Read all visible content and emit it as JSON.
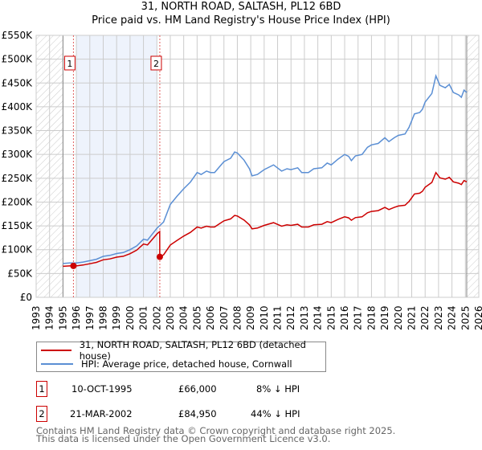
{
  "header": {
    "title": "31, NORTH ROAD, SALTASH, PL12 6BD",
    "subtitle": "Price paid vs. HM Land Registry's House Price Index (HPI)"
  },
  "chart_data": {
    "type": "line",
    "title": "31, NORTH ROAD, SALTASH, PL12 6BD",
    "subtitle": "Price paid vs. HM Land Registry's House Price Index (HPI)",
    "xlim": [
      1993,
      2026
    ],
    "ylim": [
      0,
      550000
    ],
    "x_ticks": [
      "1993",
      "1994",
      "1995",
      "1996",
      "1997",
      "1998",
      "1999",
      "2000",
      "2001",
      "2002",
      "2003",
      "2004",
      "2005",
      "2006",
      "2007",
      "2008",
      "2009",
      "2010",
      "2011",
      "2012",
      "2013",
      "2014",
      "2015",
      "2016",
      "2017",
      "2018",
      "2019",
      "2020",
      "2021",
      "2022",
      "2023",
      "2024",
      "2025",
      "2026"
    ],
    "y_ticks": [
      {
        "v": 0,
        "label": "£0"
      },
      {
        "v": 50000,
        "label": "£50K"
      },
      {
        "v": 100000,
        "label": "£100K"
      },
      {
        "v": 150000,
        "label": "£150K"
      },
      {
        "v": 200000,
        "label": "£200K"
      },
      {
        "v": 250000,
        "label": "£250K"
      },
      {
        "v": 300000,
        "label": "£300K"
      },
      {
        "v": 350000,
        "label": "£350K"
      },
      {
        "v": 400000,
        "label": "£400K"
      },
      {
        "v": 450000,
        "label": "£450K"
      },
      {
        "v": 500000,
        "label": "£500K"
      },
      {
        "v": 550000,
        "label": "£550K"
      }
    ],
    "grid": true,
    "hatched_ranges": [
      [
        1993,
        1995
      ],
      [
        2025.1,
        2026
      ]
    ],
    "shaded_range": [
      1996,
      2002
    ],
    "series": [
      {
        "name": "HPI: Average price, detached house, Cornwall",
        "color": "#5b8fd4",
        "x": [
          1995,
          1995.5,
          1996,
          1996.5,
          1997,
          1997.5,
          1998,
          1998.5,
          1999,
          1999.5,
          2000,
          2000.5,
          2001,
          2001.3,
          2001.5,
          2002,
          2002.5,
          2003,
          2003.5,
          2004,
          2004.5,
          2005,
          2005.3,
          2005.7,
          2006,
          2006.3,
          2006.7,
          2007,
          2007.5,
          2007.8,
          2008,
          2008.5,
          2008.9,
          2009.1,
          2009.5,
          2010,
          2010.7,
          2011.3,
          2011.7,
          2012,
          2012.5,
          2012.8,
          2013.3,
          2013.7,
          2014.3,
          2014.7,
          2015,
          2015.5,
          2016,
          2016.3,
          2016.5,
          2016.8,
          2017.3,
          2017.7,
          2018,
          2018.5,
          2019,
          2019.3,
          2019.7,
          2020,
          2020.5,
          2020.8,
          2021.2,
          2021.6,
          2021.8,
          2022,
          2022.5,
          2022.8,
          2023.1,
          2023.5,
          2023.8,
          2024.1,
          2024.5,
          2024.7,
          2024.9,
          2025.1
        ],
        "y": [
          71000,
          72000,
          72000,
          74000,
          77000,
          80000,
          86000,
          88000,
          92000,
          94000,
          100000,
          108000,
          122000,
          120000,
          127000,
          145000,
          158000,
          195000,
          212000,
          228000,
          242000,
          262000,
          258000,
          265000,
          262000,
          262000,
          275000,
          285000,
          292000,
          305000,
          303000,
          288000,
          270000,
          255000,
          258000,
          268000,
          278000,
          265000,
          270000,
          268000,
          272000,
          262000,
          262000,
          270000,
          272000,
          282000,
          278000,
          290000,
          300000,
          296000,
          287000,
          297000,
          300000,
          315000,
          320000,
          323000,
          335000,
          327000,
          335000,
          340000,
          343000,
          357000,
          385000,
          388000,
          395000,
          410000,
          428000,
          465000,
          445000,
          440000,
          447000,
          430000,
          425000,
          420000,
          435000,
          430000
        ]
      },
      {
        "name": "31, NORTH ROAD, SALTASH, PL12 6BD (detached house)",
        "color": "#cc0000"
      }
    ],
    "sales": [
      {
        "id": "1",
        "x": 1995.78,
        "price": 66000
      },
      {
        "id": "2",
        "x": 2002.22,
        "price": 84950
      }
    ]
  },
  "legend": {
    "items": [
      {
        "label": "31, NORTH ROAD, SALTASH, PL12 6BD (detached house)",
        "color": "#cc0000"
      },
      {
        "label": "HPI: Average price, detached house, Cornwall",
        "color": "#5b8fd4"
      }
    ]
  },
  "transactions": [
    {
      "num": "1",
      "date": "10-OCT-1995",
      "price": "£66,000",
      "hpi": "8% ↓ HPI"
    },
    {
      "num": "2",
      "date": "21-MAR-2002",
      "price": "£84,950",
      "hpi": "44% ↓ HPI"
    }
  ],
  "footer": {
    "line1": "Contains HM Land Registry data © Crown copyright and database right 2025.",
    "line2": "This data is licensed under the Open Government Licence v3.0."
  }
}
